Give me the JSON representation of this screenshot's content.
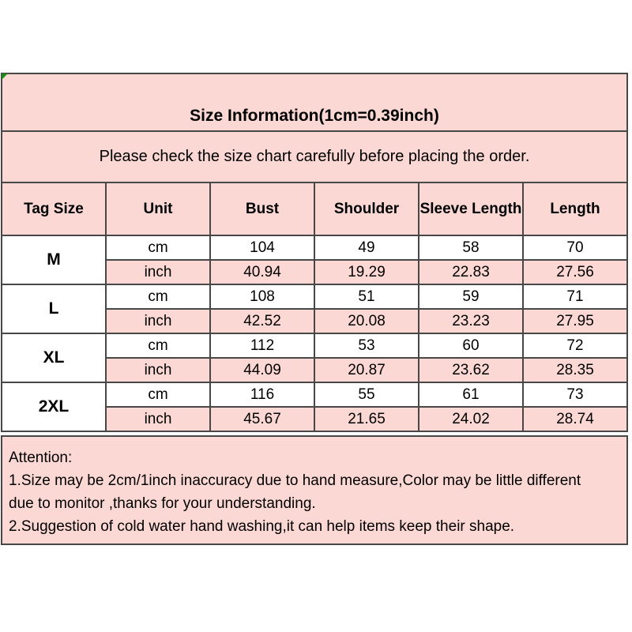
{
  "colors": {
    "pink_background": "#fbd8d4",
    "table_border": "#474747",
    "corner_marker_green": "#1b8a1b",
    "text": "#000000"
  },
  "header": {
    "title": "Size Information(1cm=0.39inch)",
    "subtitle": "Please check the size chart carefully before placing the order."
  },
  "size_table": {
    "columns": [
      "Tag Size",
      "Unit",
      "Bust",
      "Shoulder",
      "Sleeve Length",
      "Length"
    ],
    "unit_labels": {
      "cm": "cm",
      "inch": "inch"
    },
    "rows": [
      {
        "size": "M",
        "cm": [
          "104",
          "49",
          "58",
          "70"
        ],
        "inch": [
          "40.94",
          "19.29",
          "22.83",
          "27.56"
        ]
      },
      {
        "size": "L",
        "cm": [
          "108",
          "51",
          "59",
          "71"
        ],
        "inch": [
          "42.52",
          "20.08",
          "23.23",
          "27.95"
        ]
      },
      {
        "size": "XL",
        "cm": [
          "112",
          "53",
          "60",
          "72"
        ],
        "inch": [
          "44.09",
          "20.87",
          "23.62",
          "28.35"
        ]
      },
      {
        "size": "2XL",
        "cm": [
          "116",
          "55",
          "61",
          "73"
        ],
        "inch": [
          "45.67",
          "21.65",
          "24.02",
          "28.74"
        ]
      }
    ]
  },
  "attention": {
    "heading": "Attention:",
    "notes": [
      "1.Size may be 2cm/1inch inaccuracy due to hand measure,Color may be little different due to monitor ,thanks for your understanding.",
      "2.Suggestion of cold water hand washing,it can help items keep their shape."
    ]
  }
}
